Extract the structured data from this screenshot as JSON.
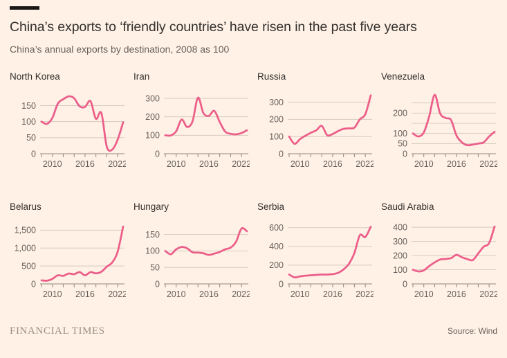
{
  "header": {
    "title": "China’s exports to ‘friendly countries’ have risen in the past five years",
    "subtitle": "China’s annual exports by destination, 2008 as 100"
  },
  "footer": {
    "brand": "FINANCIAL TIMES",
    "source": "Source: Wind"
  },
  "colors": {
    "background": "#FFF1E5",
    "line": "#EC5E8A",
    "grid": "#D6CABE",
    "axis": "#8F8880",
    "title_text": "#33302E",
    "muted_text": "#66605C"
  },
  "axis_defaults": {
    "x_tick_years": [
      2008,
      2010,
      2012,
      2014,
      2016,
      2018,
      2020,
      2022
    ],
    "x_label_years": [
      {
        "v": 2010,
        "l": "2010"
      },
      {
        "v": 2016,
        "l": "2016"
      },
      {
        "v": 2022,
        "l": "2022"
      }
    ]
  },
  "chart_data": [
    {
      "type": "line",
      "title": "North Korea",
      "x": [
        2008,
        2009,
        2010,
        2011,
        2012,
        2013,
        2014,
        2015,
        2016,
        2017,
        2018,
        2019,
        2020,
        2021,
        2022,
        2023
      ],
      "values": [
        100,
        93,
        112,
        156,
        170,
        179,
        173,
        148,
        146,
        164,
        109,
        127,
        22,
        13,
        44,
        98
      ],
      "ylim": [
        0,
        190
      ],
      "yticks": [
        {
          "v": 0,
          "l": "0"
        },
        {
          "v": 50,
          "l": "50"
        },
        {
          "v": 100,
          "l": "100"
        },
        {
          "v": 150,
          "l": "150"
        }
      ]
    },
    {
      "type": "line",
      "title": "Iran",
      "x": [
        2008,
        2009,
        2010,
        2011,
        2012,
        2013,
        2014,
        2015,
        2016,
        2017,
        2018,
        2019,
        2020,
        2021,
        2022,
        2023
      ],
      "values": [
        100,
        99,
        122,
        185,
        145,
        175,
        303,
        220,
        205,
        232,
        172,
        120,
        108,
        105,
        112,
        127
      ],
      "ylim": [
        0,
        330
      ],
      "yticks": [
        {
          "v": 0,
          "l": "0"
        },
        {
          "v": 100,
          "l": "100"
        },
        {
          "v": 200,
          "l": "200"
        },
        {
          "v": 300,
          "l": "300"
        }
      ]
    },
    {
      "type": "line",
      "title": "Russia",
      "x": [
        2008,
        2009,
        2010,
        2011,
        2012,
        2013,
        2014,
        2015,
        2016,
        2017,
        2018,
        2019,
        2020,
        2021,
        2022,
        2023
      ],
      "values": [
        100,
        58,
        85,
        105,
        122,
        137,
        162,
        108,
        115,
        132,
        145,
        148,
        152,
        200,
        230,
        340
      ],
      "ylim": [
        0,
        355
      ],
      "yticks": [
        {
          "v": 0,
          "l": "0"
        },
        {
          "v": 100,
          "l": "100"
        },
        {
          "v": 200,
          "l": "200"
        },
        {
          "v": 300,
          "l": "300"
        }
      ]
    },
    {
      "type": "line",
      "title": "Venezuela",
      "x": [
        2008,
        2009,
        2010,
        2011,
        2012,
        2013,
        2014,
        2015,
        2016,
        2017,
        2018,
        2019,
        2020,
        2021,
        2022,
        2023
      ],
      "values": [
        100,
        85,
        105,
        185,
        290,
        198,
        176,
        166,
        90,
        56,
        42,
        45,
        50,
        56,
        85,
        108
      ],
      "ylim": [
        0,
        300
      ],
      "yticks": [
        {
          "v": 0,
          "l": "0"
        },
        {
          "v": 50,
          "l": "50"
        },
        {
          "v": 100,
          "l": "100"
        },
        {
          "v": 150,
          "l": ""
        },
        {
          "v": 200,
          "l": "200"
        },
        {
          "v": 250,
          "l": ""
        }
      ]
    },
    {
      "type": "line",
      "title": "Belarus",
      "x": [
        2008,
        2009,
        2010,
        2011,
        2012,
        2013,
        2014,
        2015,
        2016,
        2017,
        2018,
        2019,
        2020,
        2021,
        2022,
        2023
      ],
      "values": [
        100,
        90,
        140,
        240,
        225,
        290,
        270,
        330,
        240,
        330,
        295,
        340,
        480,
        600,
        900,
        1600
      ],
      "ylim": [
        0,
        1700
      ],
      "yticks": [
        {
          "v": 0,
          "l": "0"
        },
        {
          "v": 500,
          "l": "500"
        },
        {
          "v": 1000,
          "l": "1,000"
        },
        {
          "v": 1500,
          "l": "1,500"
        }
      ]
    },
    {
      "type": "line",
      "title": "Hungary",
      "x": [
        2008,
        2009,
        2010,
        2011,
        2012,
        2013,
        2014,
        2015,
        2016,
        2017,
        2018,
        2019,
        2020,
        2021,
        2022,
        2023
      ],
      "values": [
        100,
        90,
        105,
        112,
        108,
        96,
        95,
        93,
        88,
        92,
        97,
        105,
        110,
        128,
        168,
        160
      ],
      "ylim": [
        0,
        185
      ],
      "yticks": [
        {
          "v": 0,
          "l": "0"
        },
        {
          "v": 50,
          "l": "50"
        },
        {
          "v": 100,
          "l": "100"
        },
        {
          "v": 150,
          "l": "150"
        }
      ]
    },
    {
      "type": "line",
      "title": "Serbia",
      "x": [
        2008,
        2009,
        2010,
        2011,
        2012,
        2013,
        2014,
        2015,
        2016,
        2017,
        2018,
        2019,
        2020,
        2021,
        2022,
        2023
      ],
      "values": [
        100,
        70,
        80,
        88,
        92,
        96,
        100,
        100,
        104,
        118,
        155,
        215,
        330,
        520,
        500,
        610
      ],
      "ylim": [
        0,
        650
      ],
      "yticks": [
        {
          "v": 0,
          "l": "0"
        },
        {
          "v": 200,
          "l": "200"
        },
        {
          "v": 400,
          "l": "400"
        },
        {
          "v": 600,
          "l": "600"
        }
      ]
    },
    {
      "type": "line",
      "title": "Saudi Arabia",
      "x": [
        2008,
        2009,
        2010,
        2011,
        2012,
        2013,
        2014,
        2015,
        2016,
        2017,
        2018,
        2019,
        2020,
        2021,
        2022,
        2023
      ],
      "values": [
        100,
        88,
        96,
        126,
        152,
        172,
        176,
        182,
        205,
        188,
        175,
        168,
        215,
        262,
        288,
        405
      ],
      "ylim": [
        0,
        430
      ],
      "yticks": [
        {
          "v": 0,
          "l": "0"
        },
        {
          "v": 100,
          "l": "100"
        },
        {
          "v": 200,
          "l": "200"
        },
        {
          "v": 300,
          "l": "300"
        },
        {
          "v": 400,
          "l": "400"
        }
      ]
    }
  ]
}
